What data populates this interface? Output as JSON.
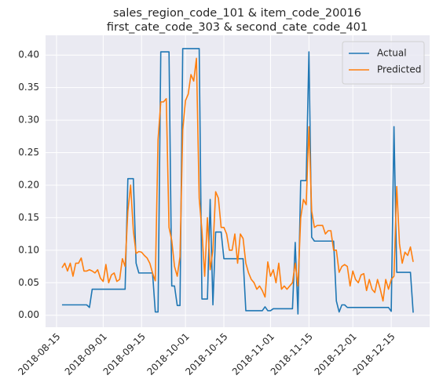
{
  "chart_data": {
    "type": "line",
    "title": [
      "sales_region_code_101 & item_code_20016",
      "first_cate_code_303 & second_cate_code_401"
    ],
    "x": [
      "2018-08-17",
      "2018-08-18",
      "2018-08-19",
      "2018-08-20",
      "2018-08-21",
      "2018-08-22",
      "2018-08-23",
      "2018-08-24",
      "2018-08-25",
      "2018-08-26",
      "2018-08-27",
      "2018-08-28",
      "2018-08-29",
      "2018-08-30",
      "2018-08-31",
      "2018-09-01",
      "2018-09-02",
      "2018-09-03",
      "2018-09-04",
      "2018-09-05",
      "2018-09-06",
      "2018-09-07",
      "2018-09-08",
      "2018-09-09",
      "2018-09-10",
      "2018-09-11",
      "2018-09-12",
      "2018-09-13",
      "2018-09-14",
      "2018-09-15",
      "2018-09-16",
      "2018-09-17",
      "2018-09-18",
      "2018-09-19",
      "2018-09-20",
      "2018-09-21",
      "2018-09-22",
      "2018-09-23",
      "2018-09-24",
      "2018-09-25",
      "2018-09-26",
      "2018-09-27",
      "2018-09-28",
      "2018-09-29",
      "2018-09-30",
      "2018-10-01",
      "2018-10-02",
      "2018-10-03",
      "2018-10-04",
      "2018-10-05",
      "2018-10-06",
      "2018-10-07",
      "2018-10-08",
      "2018-10-09",
      "2018-10-10",
      "2018-10-11",
      "2018-10-12",
      "2018-10-13",
      "2018-10-14",
      "2018-10-15",
      "2018-10-16",
      "2018-10-17",
      "2018-10-18",
      "2018-10-19",
      "2018-10-20",
      "2018-10-21",
      "2018-10-22",
      "2018-10-23",
      "2018-10-24",
      "2018-10-25",
      "2018-10-26",
      "2018-10-27",
      "2018-10-28",
      "2018-10-29",
      "2018-10-30",
      "2018-10-31",
      "2018-11-01",
      "2018-11-02",
      "2018-11-03",
      "2018-11-04",
      "2018-11-05",
      "2018-11-06",
      "2018-11-07",
      "2018-11-08",
      "2018-11-09",
      "2018-11-10",
      "2018-11-11",
      "2018-11-12",
      "2018-11-13",
      "2018-11-14",
      "2018-11-15",
      "2018-11-16",
      "2018-11-17",
      "2018-11-18",
      "2018-11-19",
      "2018-11-20",
      "2018-11-21",
      "2018-11-22",
      "2018-11-23",
      "2018-11-24",
      "2018-11-25",
      "2018-11-26",
      "2018-11-27",
      "2018-11-28",
      "2018-11-29",
      "2018-11-30",
      "2018-12-01",
      "2018-12-02",
      "2018-12-03",
      "2018-12-04",
      "2018-12-05",
      "2018-12-06",
      "2018-12-07",
      "2018-12-08",
      "2018-12-09",
      "2018-12-10",
      "2018-12-11",
      "2018-12-12",
      "2018-12-13",
      "2018-12-14",
      "2018-12-15",
      "2018-12-16",
      "2018-12-17",
      "2018-12-18",
      "2018-12-19",
      "2018-12-20",
      "2018-12-21",
      "2018-12-22",
      "2018-12-23"
    ],
    "series": [
      {
        "name": "Actual",
        "color": "#1f77b4",
        "values": [
          0.016,
          0.016,
          0.016,
          0.016,
          0.016,
          0.016,
          0.016,
          0.016,
          0.016,
          0.016,
          0.012,
          0.04,
          0.04,
          0.04,
          0.04,
          0.04,
          0.04,
          0.04,
          0.04,
          0.04,
          0.04,
          0.04,
          0.04,
          0.04,
          0.21,
          0.21,
          0.21,
          0.08,
          0.065,
          0.065,
          0.065,
          0.065,
          0.065,
          0.065,
          0.005,
          0.005,
          0.405,
          0.405,
          0.405,
          0.405,
          0.045,
          0.045,
          0.015,
          0.015,
          0.41,
          0.41,
          0.41,
          0.41,
          0.41,
          0.41,
          0.41,
          0.025,
          0.025,
          0.025,
          0.178,
          0.016,
          0.128,
          0.128,
          0.128,
          0.087,
          0.087,
          0.087,
          0.087,
          0.087,
          0.087,
          0.087,
          0.087,
          0.007,
          0.007,
          0.007,
          0.007,
          0.007,
          0.007,
          0.007,
          0.013,
          0.007,
          0.007,
          0.01,
          0.01,
          0.01,
          0.01,
          0.01,
          0.01,
          0.01,
          0.01,
          0.112,
          0.002,
          0.207,
          0.207,
          0.207,
          0.405,
          0.12,
          0.114,
          0.114,
          0.114,
          0.114,
          0.114,
          0.114,
          0.114,
          0.114,
          0.022,
          0.005,
          0.016,
          0.016,
          0.012,
          0.012,
          0.012,
          0.012,
          0.012,
          0.012,
          0.012,
          0.012,
          0.012,
          0.012,
          0.012,
          0.012,
          0.012,
          0.012,
          0.012,
          0.012,
          0.006,
          0.29,
          0.066,
          0.066,
          0.066,
          0.066,
          0.066,
          0.066,
          0.004
        ]
      },
      {
        "name": "Predicted",
        "color": "#ff7f0e",
        "values": [
          0.073,
          0.08,
          0.068,
          0.08,
          0.06,
          0.08,
          0.08,
          0.088,
          0.068,
          0.068,
          0.07,
          0.068,
          0.065,
          0.07,
          0.057,
          0.052,
          0.078,
          0.05,
          0.062,
          0.065,
          0.052,
          0.055,
          0.087,
          0.075,
          0.16,
          0.2,
          0.13,
          0.095,
          0.098,
          0.097,
          0.092,
          0.088,
          0.08,
          0.065,
          0.053,
          0.27,
          0.328,
          0.328,
          0.333,
          0.135,
          0.115,
          0.075,
          0.06,
          0.09,
          0.285,
          0.33,
          0.34,
          0.37,
          0.36,
          0.395,
          0.18,
          0.13,
          0.06,
          0.15,
          0.07,
          0.1,
          0.19,
          0.18,
          0.135,
          0.135,
          0.125,
          0.1,
          0.1,
          0.125,
          0.08,
          0.125,
          0.118,
          0.08,
          0.065,
          0.055,
          0.05,
          0.04,
          0.045,
          0.038,
          0.028,
          0.082,
          0.06,
          0.07,
          0.05,
          0.08,
          0.04,
          0.045,
          0.04,
          0.045,
          0.05,
          0.08,
          0.045,
          0.15,
          0.178,
          0.17,
          0.29,
          0.16,
          0.135,
          0.138,
          0.138,
          0.138,
          0.125,
          0.13,
          0.13,
          0.1,
          0.1,
          0.066,
          0.075,
          0.078,
          0.075,
          0.045,
          0.068,
          0.055,
          0.05,
          0.062,
          0.064,
          0.038,
          0.055,
          0.04,
          0.035,
          0.055,
          0.04,
          0.022,
          0.055,
          0.04,
          0.055,
          0.06,
          0.198,
          0.11,
          0.08,
          0.097,
          0.092,
          0.105,
          0.082
        ]
      }
    ],
    "xlim": [
      "2018-08-11",
      "2018-12-29"
    ],
    "xticks": [
      "2018-08-15",
      "2018-09-01",
      "2018-09-15",
      "2018-10-01",
      "2018-10-15",
      "2018-11-01",
      "2018-11-15",
      "2018-12-01",
      "2018-12-15"
    ],
    "ylim": [
      -0.0184,
      0.4304
    ],
    "yticks": [
      {
        "value": 0,
        "label": "0.00"
      },
      {
        "value": 0.05,
        "label": "0.05"
      },
      {
        "value": 0.1,
        "label": "0.10"
      },
      {
        "value": 0.15,
        "label": "0.15"
      },
      {
        "value": 0.2,
        "label": "0.20"
      },
      {
        "value": 0.25,
        "label": "0.25"
      },
      {
        "value": 0.3,
        "label": "0.30"
      },
      {
        "value": 0.35,
        "label": "0.35"
      },
      {
        "value": 0.4,
        "label": "0.40"
      }
    ],
    "grid": true,
    "legend": "upper right"
  }
}
